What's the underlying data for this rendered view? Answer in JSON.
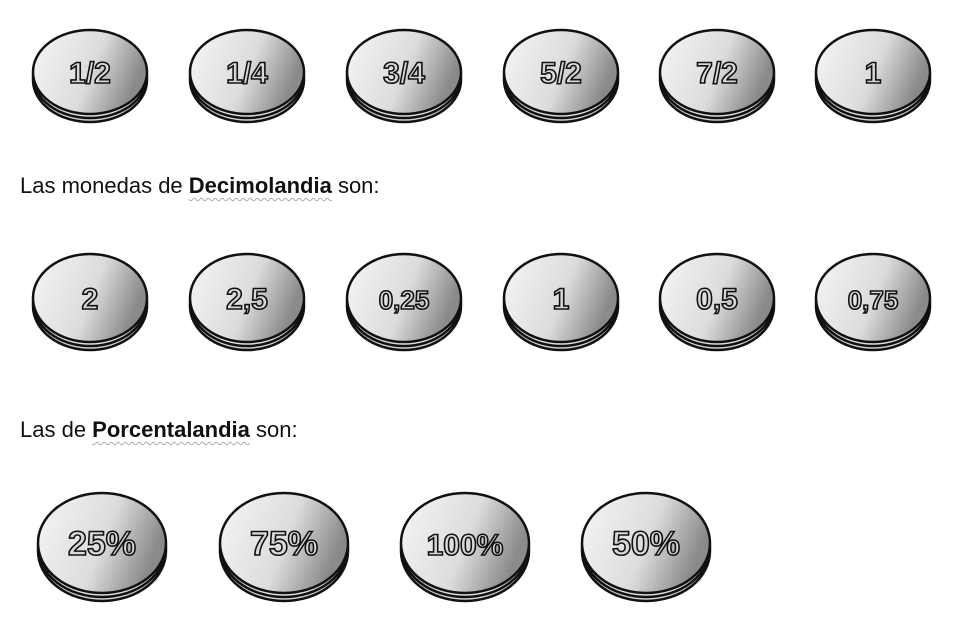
{
  "rows": [
    {
      "coins": [
        "1/2",
        "1/4",
        "3/4",
        "5/2",
        "7/2",
        "1"
      ]
    },
    {
      "coins": [
        "2",
        "2,5",
        "0,25",
        "1",
        "0,5",
        "0,75"
      ]
    },
    {
      "coins": [
        "25%",
        "75%",
        "100%",
        "50%"
      ]
    }
  ],
  "decimal_intro": {
    "before": "Las monedas de ",
    "name": "Decimolandia",
    "after": " son:"
  },
  "percent_intro": {
    "before": "Las de ",
    "name": "Porcentalandia",
    "after": " son:"
  }
}
